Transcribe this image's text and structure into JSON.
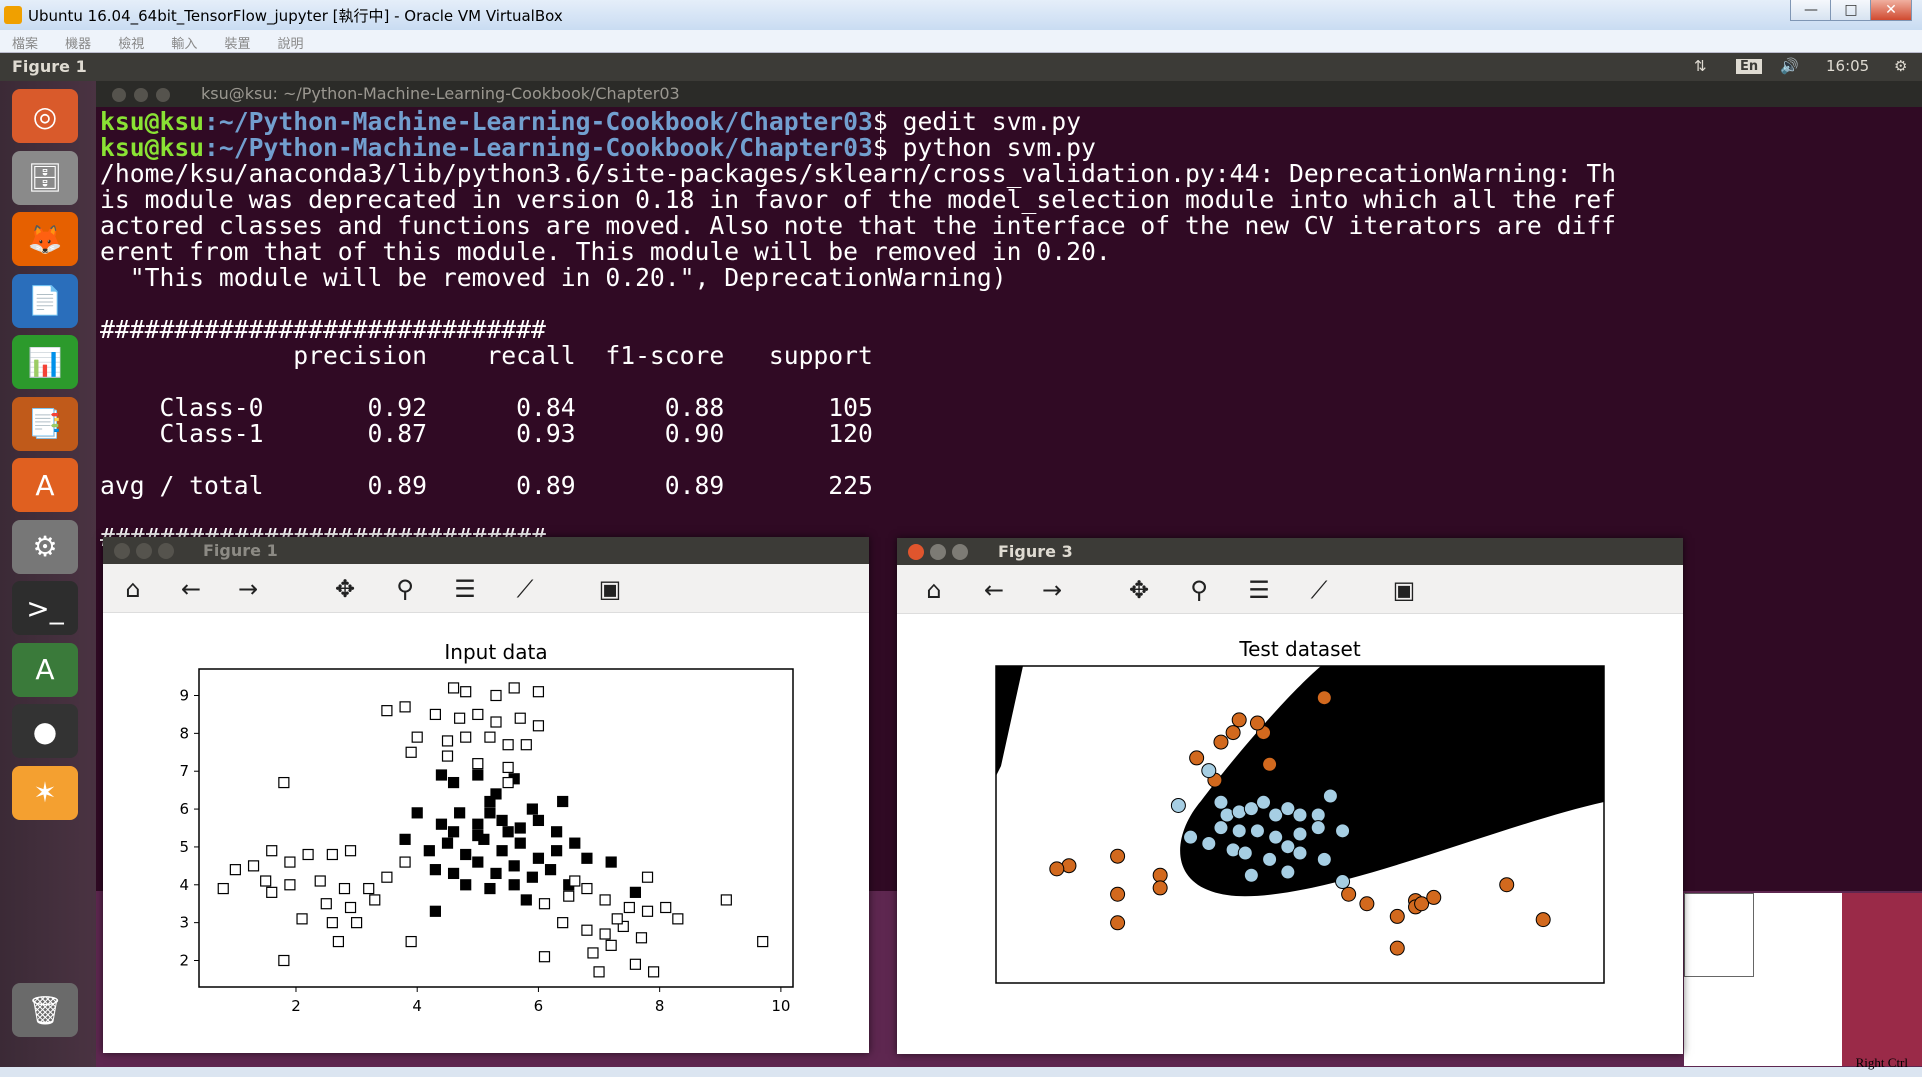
{
  "host": {
    "title": "Ubuntu 16.04_64bit_TensorFlow_jupyter [執行中] - Oracle VM VirtualBox",
    "menu": [
      "檔案",
      "機器",
      "檢視",
      "輸入",
      "裝置",
      "說明"
    ],
    "window_buttons": [
      "—",
      "□",
      "✕"
    ],
    "status_right": "Right Ctrl"
  },
  "panel": {
    "app_name": "Figure 1",
    "keyboard": "En",
    "time": "16:05",
    "network_icon": "network-arrows-icon",
    "volume_icon": "volume-icon",
    "settings_icon": "gear-icon"
  },
  "launcher": {
    "items": [
      {
        "name": "dash-home",
        "glyph": "◎",
        "color": "#d95a2b"
      },
      {
        "name": "files",
        "glyph": "🗄",
        "color": "#8a8a8a"
      },
      {
        "name": "firefox",
        "glyph": "🦊",
        "color": "#e66000"
      },
      {
        "name": "writer",
        "glyph": "📄",
        "color": "#2a6ebb"
      },
      {
        "name": "calc",
        "glyph": "📊",
        "color": "#2c9a2c"
      },
      {
        "name": "impress",
        "glyph": "📑",
        "color": "#c05a1a"
      },
      {
        "name": "software-center",
        "glyph": "A",
        "color": "#e06020"
      },
      {
        "name": "system-settings",
        "glyph": "⚙",
        "color": "#777"
      },
      {
        "name": "terminal",
        "glyph": ">_",
        "color": "#2d2d2d"
      },
      {
        "name": "software-updater",
        "glyph": "A",
        "color": "#3a7a3a"
      },
      {
        "name": "disk-drive",
        "glyph": "●",
        "color": "#333"
      },
      {
        "name": "photo-app",
        "glyph": "✶",
        "color": "#f4a030"
      },
      {
        "name": "trash",
        "glyph": "🗑",
        "color": "#6a6a6a"
      }
    ]
  },
  "terminal": {
    "title": "ksu@ksu: ~/Python-Machine-Learning-Cookbook/Chapter03",
    "user": "ksu@ksu",
    "path": ":~/Python-Machine-Learning-Cookbook/Chapter03",
    "cmd1": "$ gedit svm.py",
    "cmd2": "$ python svm.py",
    "lines": [
      "/home/ksu/anaconda3/lib/python3.6/site-packages/sklearn/cross_validation.py:44: DeprecationWarning: Th",
      "is module was deprecated in version 0.18 in favor of the model_selection module into which all the ref",
      "actored classes and functions are moved. Also note that the interface of the new CV iterators are diff",
      "erent from that of this module. This module will be removed in 0.20.",
      "  \"This module will be removed in 0.20.\", DeprecationWarning)",
      "",
      "##############################",
      "             precision    recall  f1-score   support",
      "",
      "    Class-0       0.92      0.84      0.88       105",
      "    Class-1       0.87      0.93      0.90       120",
      "",
      "avg / total       0.89      0.89      0.89       225",
      "",
      "##############################"
    ]
  },
  "figure1": {
    "window_title": "Figure 1",
    "toolbar": [
      "home-icon",
      "back-icon",
      "forward-icon",
      "pan-icon",
      "zoom-icon",
      "subplots-icon",
      "edit-curves-icon",
      "save-icon"
    ]
  },
  "figure3": {
    "window_title": "Figure 3",
    "toolbar": [
      "home-icon",
      "back-icon",
      "forward-icon",
      "pan-icon",
      "zoom-icon",
      "subplots-icon",
      "edit-curves-icon",
      "save-icon"
    ]
  },
  "chart_data": [
    {
      "type": "scatter",
      "title": "Input data",
      "xlabel": "",
      "ylabel": "",
      "xlim": [
        0.4,
        10.2
      ],
      "ylim": [
        1.3,
        9.7
      ],
      "xticks": [
        2,
        4,
        6,
        8,
        10
      ],
      "yticks": [
        2,
        3,
        4,
        5,
        6,
        7,
        8,
        9
      ],
      "series": [
        {
          "marker": "filled-square",
          "color": "#000000",
          "points": [
            [
              4.4,
              6.9
            ],
            [
              4.6,
              6.7
            ],
            [
              5.0,
              6.9
            ],
            [
              5.3,
              6.4
            ],
            [
              5.6,
              6.8
            ],
            [
              5.9,
              6.0
            ],
            [
              6.4,
              6.2
            ],
            [
              4.0,
              5.9
            ],
            [
              4.4,
              5.6
            ],
            [
              4.7,
              5.9
            ],
            [
              5.0,
              5.6
            ],
            [
              5.2,
              5.9
            ],
            [
              5.4,
              5.7
            ],
            [
              5.7,
              5.5
            ],
            [
              6.0,
              5.7
            ],
            [
              6.3,
              5.4
            ],
            [
              6.6,
              5.1
            ],
            [
              3.8,
              5.2
            ],
            [
              4.2,
              4.9
            ],
            [
              4.5,
              5.1
            ],
            [
              4.8,
              4.8
            ],
            [
              5.1,
              5.2
            ],
            [
              5.4,
              4.9
            ],
            [
              5.7,
              5.1
            ],
            [
              6.0,
              4.7
            ],
            [
              6.3,
              4.9
            ],
            [
              6.8,
              4.7
            ],
            [
              4.3,
              4.4
            ],
            [
              4.6,
              4.3
            ],
            [
              5.0,
              4.6
            ],
            [
              5.3,
              4.3
            ],
            [
              5.6,
              4.5
            ],
            [
              5.9,
              4.2
            ],
            [
              6.2,
              4.4
            ],
            [
              6.5,
              4.0
            ],
            [
              4.8,
              4.0
            ],
            [
              5.2,
              3.9
            ],
            [
              5.6,
              4.0
            ],
            [
              4.3,
              3.3
            ],
            [
              5.8,
              3.6
            ],
            [
              7.6,
              3.8
            ],
            [
              7.2,
              4.6
            ],
            [
              5.5,
              5.4
            ],
            [
              5.0,
              5.3
            ],
            [
              4.6,
              5.4
            ],
            [
              5.2,
              6.2
            ]
          ]
        },
        {
          "marker": "open-square",
          "color": "#000000",
          "points": [
            [
              4.6,
              9.2
            ],
            [
              4.8,
              9.1
            ],
            [
              5.3,
              9.0
            ],
            [
              5.6,
              9.2
            ],
            [
              6.0,
              9.1
            ],
            [
              3.5,
              8.6
            ],
            [
              3.8,
              8.7
            ],
            [
              4.3,
              8.5
            ],
            [
              4.7,
              8.4
            ],
            [
              5.0,
              8.5
            ],
            [
              5.3,
              8.3
            ],
            [
              5.7,
              8.4
            ],
            [
              6.0,
              8.2
            ],
            [
              4.0,
              7.9
            ],
            [
              4.5,
              7.8
            ],
            [
              4.8,
              7.9
            ],
            [
              5.2,
              7.9
            ],
            [
              5.5,
              7.7
            ],
            [
              5.8,
              7.7
            ],
            [
              3.9,
              7.5
            ],
            [
              4.5,
              7.4
            ],
            [
              5.0,
              7.2
            ],
            [
              5.5,
              7.1
            ],
            [
              1.8,
              6.7
            ],
            [
              5.5,
              6.7
            ],
            [
              1.0,
              4.4
            ],
            [
              1.3,
              4.5
            ],
            [
              1.6,
              4.9
            ],
            [
              1.9,
              4.6
            ],
            [
              2.2,
              4.8
            ],
            [
              2.6,
              4.8
            ],
            [
              2.9,
              4.9
            ],
            [
              1.5,
              4.1
            ],
            [
              1.9,
              4.0
            ],
            [
              2.4,
              4.1
            ],
            [
              2.8,
              3.9
            ],
            [
              3.2,
              3.9
            ],
            [
              3.5,
              4.2
            ],
            [
              3.8,
              4.6
            ],
            [
              0.8,
              3.9
            ],
            [
              1.6,
              3.8
            ],
            [
              2.5,
              3.5
            ],
            [
              2.9,
              3.4
            ],
            [
              3.3,
              3.6
            ],
            [
              2.1,
              3.1
            ],
            [
              2.6,
              3.0
            ],
            [
              3.0,
              3.0
            ],
            [
              2.7,
              2.5
            ],
            [
              3.9,
              2.5
            ],
            [
              1.8,
              2.0
            ],
            [
              6.1,
              3.5
            ],
            [
              6.5,
              3.7
            ],
            [
              6.8,
              3.9
            ],
            [
              7.1,
              3.6
            ],
            [
              7.5,
              3.4
            ],
            [
              7.8,
              3.3
            ],
            [
              8.1,
              3.4
            ],
            [
              8.3,
              3.1
            ],
            [
              6.4,
              3.0
            ],
            [
              6.8,
              2.8
            ],
            [
              7.1,
              2.7
            ],
            [
              7.4,
              2.9
            ],
            [
              7.7,
              2.6
            ],
            [
              6.9,
              2.2
            ],
            [
              7.2,
              2.4
            ],
            [
              7.6,
              1.9
            ],
            [
              7.9,
              1.7
            ],
            [
              6.1,
              2.1
            ],
            [
              7.0,
              1.7
            ],
            [
              7.8,
              4.2
            ],
            [
              9.1,
              3.6
            ],
            [
              9.7,
              2.5
            ],
            [
              6.6,
              4.1
            ],
            [
              7.3,
              3.1
            ]
          ]
        }
      ]
    },
    {
      "type": "scatter",
      "title": "Test dataset",
      "xlabel": "",
      "ylabel": "",
      "background": "black decision region on white",
      "series": [
        {
          "marker": "circle",
          "color": "#d2691e",
          "points": [
            [
              0.12,
              0.63
            ],
            [
              0.1,
              0.64
            ],
            [
              0.2,
              0.6
            ],
            [
              0.39,
              0.21
            ],
            [
              0.37,
              0.24
            ],
            [
              0.4,
              0.17
            ],
            [
              0.44,
              0.21
            ],
            [
              0.43,
              0.18
            ],
            [
              0.33,
              0.29
            ],
            [
              0.36,
              0.36
            ],
            [
              0.54,
              0.1
            ],
            [
              0.27,
              0.66
            ],
            [
              0.2,
              0.72
            ],
            [
              0.2,
              0.81
            ],
            [
              0.27,
              0.7
            ],
            [
              0.58,
              0.72
            ],
            [
              0.61,
              0.75
            ],
            [
              0.66,
              0.79
            ],
            [
              0.69,
              0.74
            ],
            [
              0.69,
              0.76
            ],
            [
              0.7,
              0.75
            ],
            [
              0.72,
              0.73
            ],
            [
              0.84,
              0.69
            ],
            [
              0.9,
              0.8
            ],
            [
              0.66,
              0.89
            ],
            [
              0.45,
              0.31
            ]
          ]
        },
        {
          "marker": "circle",
          "color": "#a6cee3",
          "points": [
            [
              0.3,
              0.44
            ],
            [
              0.35,
              0.33
            ],
            [
              0.37,
              0.43
            ],
            [
              0.38,
              0.47
            ],
            [
              0.4,
              0.46
            ],
            [
              0.42,
              0.45
            ],
            [
              0.44,
              0.43
            ],
            [
              0.46,
              0.47
            ],
            [
              0.48,
              0.45
            ],
            [
              0.5,
              0.47
            ],
            [
              0.53,
              0.47
            ],
            [
              0.55,
              0.41
            ],
            [
              0.37,
              0.51
            ],
            [
              0.4,
              0.52
            ],
            [
              0.43,
              0.52
            ],
            [
              0.46,
              0.54
            ],
            [
              0.5,
              0.53
            ],
            [
              0.53,
              0.51
            ],
            [
              0.35,
              0.56
            ],
            [
              0.39,
              0.58
            ],
            [
              0.41,
              0.59
            ],
            [
              0.45,
              0.61
            ],
            [
              0.48,
              0.57
            ],
            [
              0.5,
              0.59
            ],
            [
              0.57,
              0.52
            ],
            [
              0.54,
              0.61
            ],
            [
              0.42,
              0.66
            ],
            [
              0.48,
              0.65
            ],
            [
              0.57,
              0.68
            ],
            [
              0.32,
              0.54
            ]
          ]
        }
      ]
    }
  ]
}
